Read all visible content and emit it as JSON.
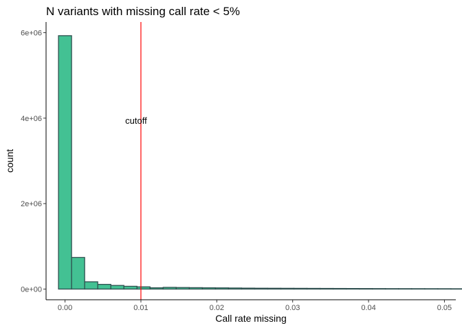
{
  "chart_data": {
    "type": "bar",
    "title": "N variants with missing call rate < 5%",
    "xlabel": "Call rate missing",
    "ylabel": "count",
    "xlim": [
      -0.0025,
      0.0515
    ],
    "ylim": [
      -250000,
      6250000
    ],
    "x_ticks": [
      0.0,
      0.01,
      0.02,
      0.03,
      0.04,
      0.05
    ],
    "x_tick_labels": [
      "0.00",
      "0.01",
      "0.02",
      "0.03",
      "0.04",
      "0.05"
    ],
    "y_ticks": [
      0,
      2000000,
      4000000,
      6000000
    ],
    "y_tick_labels": [
      "0e+00",
      "2e+06",
      "4e+06",
      "6e+06"
    ],
    "bin_width": 0.001724,
    "bin_start": -0.000862,
    "values": [
      5930000,
      740000,
      170000,
      110000,
      85000,
      65000,
      52000,
      30000,
      40000,
      36000,
      33000,
      30000,
      28000,
      25000,
      22000,
      20000,
      19000,
      18000,
      17000,
      16000,
      15000,
      14000,
      13000,
      12000,
      11000,
      10000,
      9500,
      9000,
      8500,
      8000,
      7500
    ],
    "fill_color": "#43C193",
    "stroke_color": "#2F4F4F",
    "cutoff": {
      "x": 0.01,
      "label": "cutoff",
      "label_y": 3950000,
      "color": "#FF0000"
    },
    "grid": false,
    "legend": "none"
  }
}
